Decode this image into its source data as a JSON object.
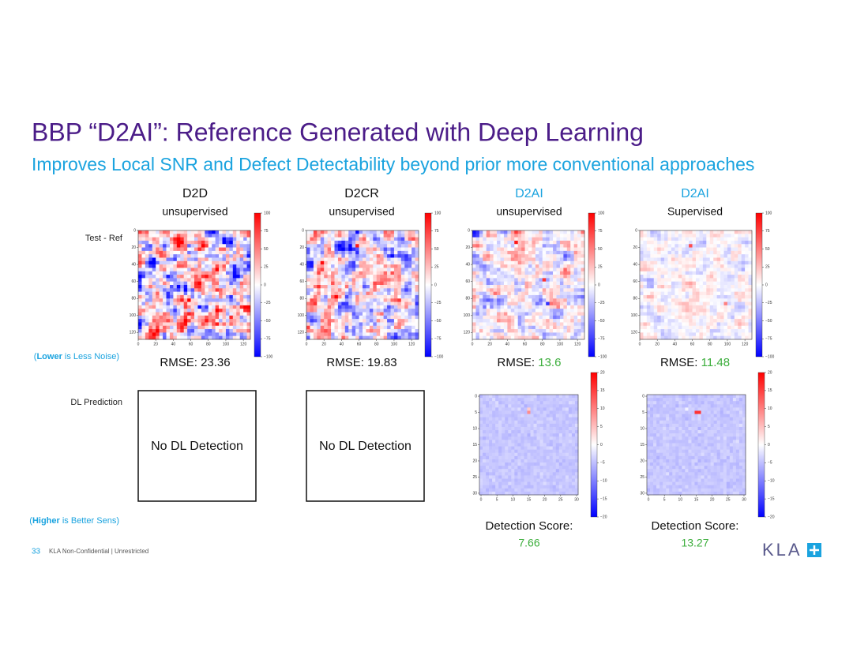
{
  "title": "BBP “D2AI”: Reference Generated with Deep Learning",
  "subtitle": "Improves Local SNR and Defect Detectability beyond prior more conventional approaches",
  "row_labels": {
    "test_ref": "Test - Ref",
    "lower_note": {
      "open": "(",
      "bold": "Lower",
      "rest": " is Less Noise)"
    },
    "dl_prediction": "DL Prediction",
    "higher_note": {
      "open": "(",
      "bold": "Higher",
      "rest": " is Better Sens)"
    }
  },
  "columns": [
    {
      "method": "D2D",
      "mode": "unsupervised",
      "rmse_label": "RMSE:",
      "rmse": "23.36",
      "prediction": "No DL Detection"
    },
    {
      "method": "D2CR",
      "mode": "unsupervised",
      "rmse_label": "RMSE:",
      "rmse": "19.83",
      "prediction": "No DL Detection"
    },
    {
      "method": "D2AI",
      "mode": "unsupervised",
      "rmse_label": "RMSE:",
      "rmse": "13.6",
      "detection_label": "Detection Score:",
      "detection_score": "7.66"
    },
    {
      "method": "D2AI",
      "mode": "Supervised",
      "rmse_label": "RMSE:",
      "rmse": "11.48",
      "detection_label": "Detection Score:",
      "detection_score": "13.27"
    }
  ],
  "diff_map": {
    "axis_ticks": [
      "0",
      "20",
      "40",
      "60",
      "80",
      "100",
      "120"
    ],
    "colorbar_ticks": [
      "100",
      "75",
      "50",
      "25",
      "0",
      "−25",
      "−50",
      "−75",
      "−100"
    ]
  },
  "prediction_map": {
    "axis_ticks": [
      "0",
      "5",
      "10",
      "15",
      "20",
      "25",
      "30"
    ],
    "colorbar_ticks": [
      "20",
      "15",
      "10",
      "5",
      "0",
      "−5",
      "−10",
      "−15",
      "−20"
    ]
  },
  "footer": {
    "page": "33",
    "classification": "KLA Non-Confidential | Unrestricted",
    "logo": "KLA"
  }
}
